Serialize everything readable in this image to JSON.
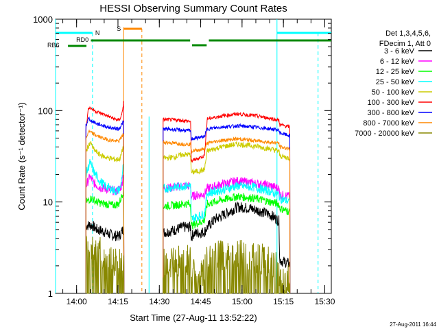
{
  "chart_data": {
    "type": "line",
    "title": "HESSI Observing Summary Count Rates",
    "xlabel": "Start Time (27-Aug-11 13:52:22)",
    "ylabel": "Count Rate (s⁻¹ detector⁻¹)",
    "y_scale": "log",
    "xlim_minutes": [
      0,
      100
    ],
    "ylim": [
      1,
      1000
    ],
    "x_tick_labels": [
      "14:00",
      "14:15",
      "14:30",
      "14:45",
      "15:00",
      "15:15",
      "15:30"
    ],
    "x_tick_minutes": [
      7.63,
      22.63,
      37.63,
      52.63,
      67.63,
      82.63,
      97.63
    ],
    "y_tick_labels": [
      "1",
      "10",
      "100",
      "1000"
    ],
    "y_tick_values": [
      1,
      10,
      100,
      1000
    ],
    "legend": {
      "placement": "right",
      "header": [
        "Det 1,3,4,5,6,",
        "FDecim 1, Att 0"
      ],
      "entries": [
        {
          "label": "3 - 6 keV",
          "color": "#000000"
        },
        {
          "label": "6 - 12 keV",
          "color": "#ff00ff"
        },
        {
          "label": "12 - 25 keV",
          "color": "#00ff00"
        },
        {
          "label": "25 - 50 keV",
          "color": "#00ffff"
        },
        {
          "label": "50 - 100 keV",
          "color": "#cccc00"
        },
        {
          "label": "100 - 300 keV",
          "color": "#ff0000"
        },
        {
          "label": "300 - 800 keV",
          "color": "#0000ff"
        },
        {
          "label": "800 - 7000 keV",
          "color": "#ff8800"
        },
        {
          "label": "7000 - 20000 keV",
          "color": "#888800"
        }
      ]
    },
    "series": [
      {
        "name": "3 - 6 keV",
        "color": "#000000",
        "points": [
          [
            11,
            5.5
          ],
          [
            13,
            5.6
          ],
          [
            15,
            5.0
          ],
          [
            17,
            4.8
          ],
          [
            19,
            4.5
          ],
          [
            21,
            4.3
          ],
          [
            23,
            4.2
          ],
          [
            24.5,
            5.0
          ]
        ]
      },
      {
        "name": "6 - 12 keV",
        "color": "#ff00ff",
        "points": [
          [
            11,
            15
          ],
          [
            12.5,
            19
          ],
          [
            14,
            16
          ],
          [
            16,
            14.5
          ],
          [
            18,
            14
          ],
          [
            20,
            13.5
          ],
          [
            22,
            13
          ],
          [
            24,
            15
          ],
          [
            24.5,
            20
          ]
        ]
      },
      {
        "name": "12 - 25 keV",
        "color": "#00ff00",
        "points": [
          [
            11,
            10
          ],
          [
            13,
            11
          ],
          [
            15,
            10
          ],
          [
            17,
            9.6
          ],
          [
            19,
            9.4
          ],
          [
            21,
            9.2
          ],
          [
            23,
            9.5
          ],
          [
            24.5,
            13
          ]
        ]
      },
      {
        "name": "25 - 50 keV",
        "color": "#00ffff",
        "points": [
          [
            11,
            20
          ],
          [
            12.5,
            27
          ],
          [
            14,
            21
          ],
          [
            16,
            17
          ],
          [
            18,
            15
          ],
          [
            20,
            14
          ],
          [
            22,
            13
          ],
          [
            23.5,
            14
          ],
          [
            24.5,
            24
          ]
        ]
      },
      {
        "name": "50 - 100 keV",
        "color": "#cccc00",
        "points": [
          [
            11,
            35
          ],
          [
            12.5,
            45
          ],
          [
            14,
            37
          ],
          [
            16,
            33
          ],
          [
            18,
            31
          ],
          [
            20,
            30
          ],
          [
            22,
            29
          ],
          [
            23.5,
            30
          ],
          [
            24.5,
            40
          ]
        ]
      },
      {
        "name": "100 - 300 keV",
        "color": "#ff0000",
        "points": [
          [
            11,
            62
          ],
          [
            12,
            110
          ],
          [
            13,
            105
          ],
          [
            15,
            97
          ],
          [
            17,
            92
          ],
          [
            19,
            87
          ],
          [
            21,
            82
          ],
          [
            23,
            78
          ],
          [
            24,
            90
          ],
          [
            24.8,
            130
          ]
        ]
      },
      {
        "name": "300 - 800 keV",
        "color": "#0000ff",
        "points": [
          [
            11,
            68
          ],
          [
            12,
            82
          ],
          [
            13,
            77
          ],
          [
            15,
            72
          ],
          [
            17,
            69
          ],
          [
            19,
            66
          ],
          [
            21,
            64
          ],
          [
            23,
            63
          ],
          [
            24.5,
            75
          ]
        ]
      },
      {
        "name": "800 - 7000 keV",
        "color": "#ff8800",
        "points": [
          [
            11,
            48
          ],
          [
            12,
            60
          ],
          [
            13,
            57
          ],
          [
            15,
            53
          ],
          [
            17,
            50
          ],
          [
            19,
            48
          ],
          [
            21,
            47
          ],
          [
            23,
            46
          ],
          [
            24.5,
            55
          ]
        ]
      },
      {
        "name": "7000 - 20000 keV",
        "color": "#888800",
        "points": [
          [
            11,
            3.3
          ],
          [
            13,
            3.2
          ],
          [
            15,
            3.0
          ],
          [
            17,
            2.6
          ],
          [
            19,
            2.4
          ],
          [
            21,
            2.2
          ],
          [
            23,
            2.1
          ],
          [
            24.5,
            2.5
          ]
        ]
      }
    ],
    "indicator_bars": [
      {
        "label": "N",
        "color": "#00ffff"
      },
      {
        "label": "S",
        "color": "#ff8800"
      },
      {
        "label": "RD0",
        "color": "#008800"
      },
      {
        "label": "RB6",
        "color": "#008800"
      }
    ],
    "footer_timestamp": "27-Aug-2011 16:44"
  }
}
